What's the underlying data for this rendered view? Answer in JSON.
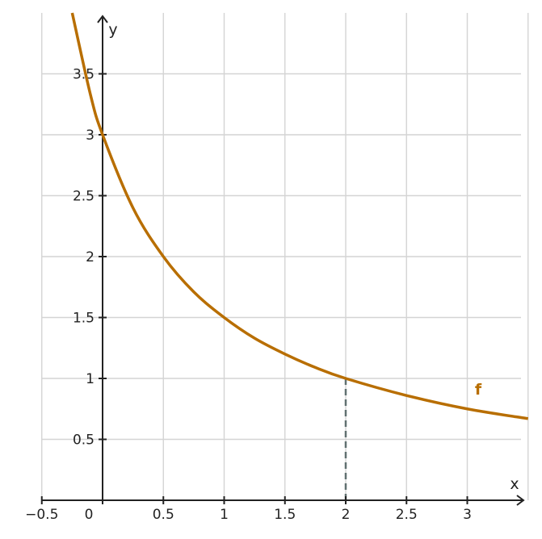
{
  "chart_data": {
    "type": "line",
    "title": "",
    "xlabel": "x",
    "ylabel": "y",
    "xlim": [
      -0.5,
      3.5
    ],
    "ylim": [
      0,
      4
    ],
    "grid": true,
    "x_ticks": [
      -0.5,
      0,
      0.5,
      1,
      1.5,
      2,
      2.5,
      3
    ],
    "x_tick_labels": [
      "−0.5",
      "0",
      "0.5",
      "1",
      "1.5",
      "2",
      "2.5",
      "3"
    ],
    "y_ticks": [
      0.5,
      1,
      1.5,
      2,
      2.5,
      3,
      3.5
    ],
    "y_tick_labels": [
      "0.5",
      "1",
      "1.5",
      "2",
      "2.5",
      "3",
      "3.5"
    ],
    "series": [
      {
        "name": "f",
        "color": "#b86e00",
        "x": [
          -0.25,
          -0.1,
          0,
          0.25,
          0.5,
          0.75,
          1,
          1.25,
          1.5,
          1.75,
          2,
          2.5,
          3,
          3.5
        ],
        "y": [
          4.0,
          3.33,
          3.0,
          2.4,
          2.0,
          1.71,
          1.5,
          1.33,
          1.2,
          1.09,
          1.0,
          0.86,
          0.75,
          0.67
        ]
      }
    ],
    "annotations": [
      {
        "type": "vertical-dashed-line",
        "x": 2,
        "y_from": 0,
        "y_to": 1,
        "color": "#617171"
      }
    ]
  }
}
